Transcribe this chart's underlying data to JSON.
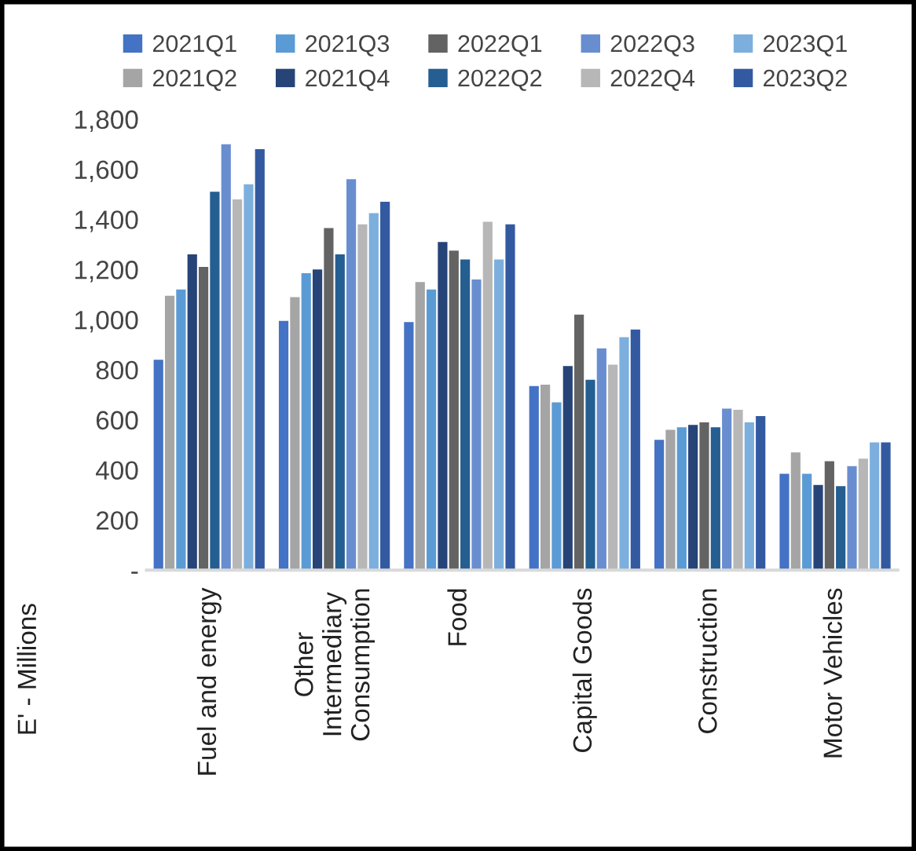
{
  "chart_data": {
    "type": "bar",
    "ylabel": "E' - Millions",
    "categories": [
      "Fuel and energy",
      "Other\nIntermediary\nConsumption",
      "Food",
      "Capital Goods",
      "Construction",
      "Motor Vehicles"
    ],
    "series": [
      {
        "name": "2021Q1",
        "color": "#4472c4",
        "values": [
          840,
          995,
          990,
          735,
          520,
          385
        ]
      },
      {
        "name": "2021Q2",
        "color": "#a5a5a5",
        "values": [
          1095,
          1090,
          1150,
          740,
          560,
          470
        ]
      },
      {
        "name": "2021Q3",
        "color": "#5b9bd5",
        "values": [
          1120,
          1185,
          1120,
          670,
          570,
          385
        ]
      },
      {
        "name": "2021Q4",
        "color": "#264478",
        "values": [
          1260,
          1200,
          1310,
          815,
          580,
          340
        ]
      },
      {
        "name": "2022Q1",
        "color": "#636363",
        "values": [
          1210,
          1365,
          1275,
          1020,
          590,
          435
        ]
      },
      {
        "name": "2022Q2",
        "color": "#255e91",
        "values": [
          1510,
          1260,
          1240,
          760,
          570,
          335
        ]
      },
      {
        "name": "2022Q3",
        "color": "#698ed0",
        "values": [
          1700,
          1560,
          1160,
          885,
          645,
          415
        ]
      },
      {
        "name": "2022Q4",
        "color": "#b7b7b7",
        "values": [
          1480,
          1380,
          1390,
          820,
          640,
          445
        ]
      },
      {
        "name": "2023Q1",
        "color": "#7cafdd",
        "values": [
          1540,
          1425,
          1240,
          930,
          590,
          510
        ]
      },
      {
        "name": "2023Q2",
        "color": "#335aa1",
        "values": [
          1680,
          1470,
          1380,
          960,
          615,
          510
        ]
      }
    ],
    "ylim": [
      0,
      1800
    ],
    "yticks": [
      {
        "value": 0,
        "label": "-"
      },
      200,
      400,
      600,
      800,
      {
        "value": 1000,
        "label": "1,000"
      },
      {
        "value": 1200,
        "label": "1,200"
      },
      {
        "value": 1400,
        "label": "1,400"
      },
      {
        "value": 1600,
        "label": "1,600"
      },
      {
        "value": 1800,
        "label": "1,800"
      }
    ],
    "grid": false,
    "legend": "top"
  }
}
